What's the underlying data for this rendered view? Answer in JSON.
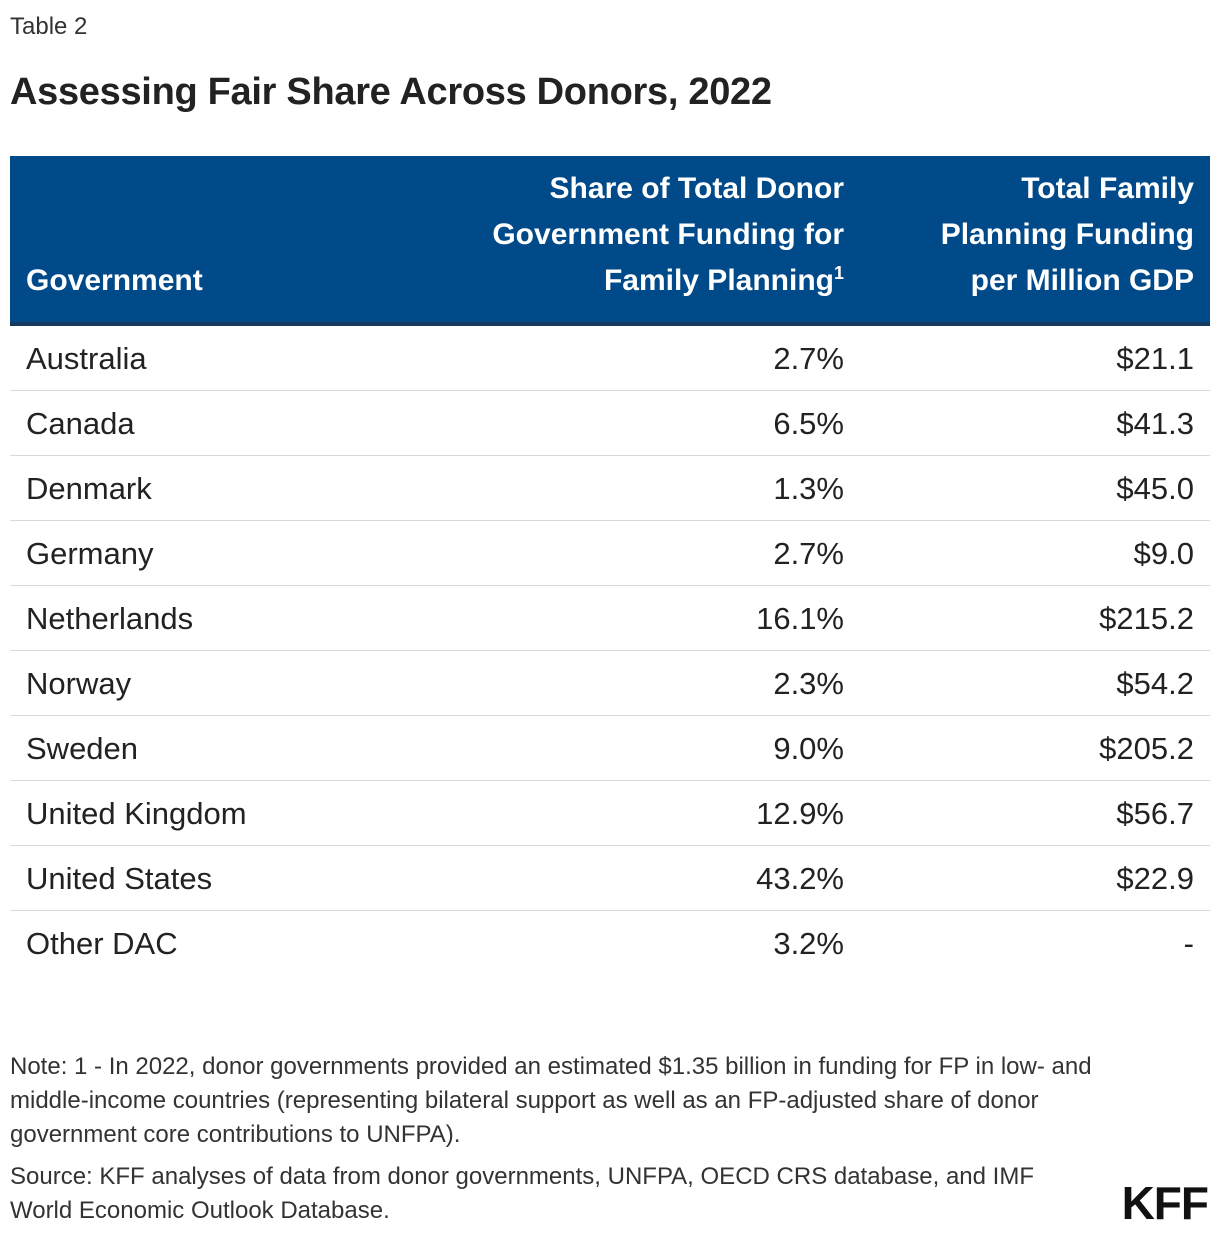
{
  "label": "Table 2",
  "title": "Assessing Fair Share Across Donors, 2022",
  "header": {
    "government": "Government",
    "share": "Share of Total Donor Government Funding for Family Planning",
    "share_sup": "1",
    "fp": "Total Family Planning Funding per Million GDP"
  },
  "rows": [
    {
      "government": "Australia",
      "share": "2.7%",
      "fp": "$21.1"
    },
    {
      "government": "Canada",
      "share": "6.5%",
      "fp": "$41.3"
    },
    {
      "government": "Denmark",
      "share": "1.3%",
      "fp": "$45.0"
    },
    {
      "government": "Germany",
      "share": "2.7%",
      "fp": "$9.0"
    },
    {
      "government": "Netherlands",
      "share": "16.1%",
      "fp": "$215.2"
    },
    {
      "government": "Norway",
      "share": "2.3%",
      "fp": "$54.2"
    },
    {
      "government": "Sweden",
      "share": "9.0%",
      "fp": "$205.2"
    },
    {
      "government": "United Kingdom",
      "share": "12.9%",
      "fp": "$56.7"
    },
    {
      "government": "United States",
      "share": "43.2%",
      "fp": "$22.9"
    },
    {
      "government": "Other DAC",
      "share": "3.2%",
      "fp": "-"
    }
  ],
  "note": "Note: 1 - In 2022, donor governments provided an estimated $1.35 billion in funding for FP in low- and middle-income countries (representing bilateral support as well as an FP-adjusted share of donor government core contributions to UNFPA).",
  "source": "Source: KFF analyses of data from donor governments, UNFPA, OECD CRS database, and IMF World Economic Outlook Database.",
  "logo": "KFF",
  "colors": {
    "header_bg": "#004a8a",
    "header_text": "#ffffff",
    "divider": "#d9d9d9"
  }
}
